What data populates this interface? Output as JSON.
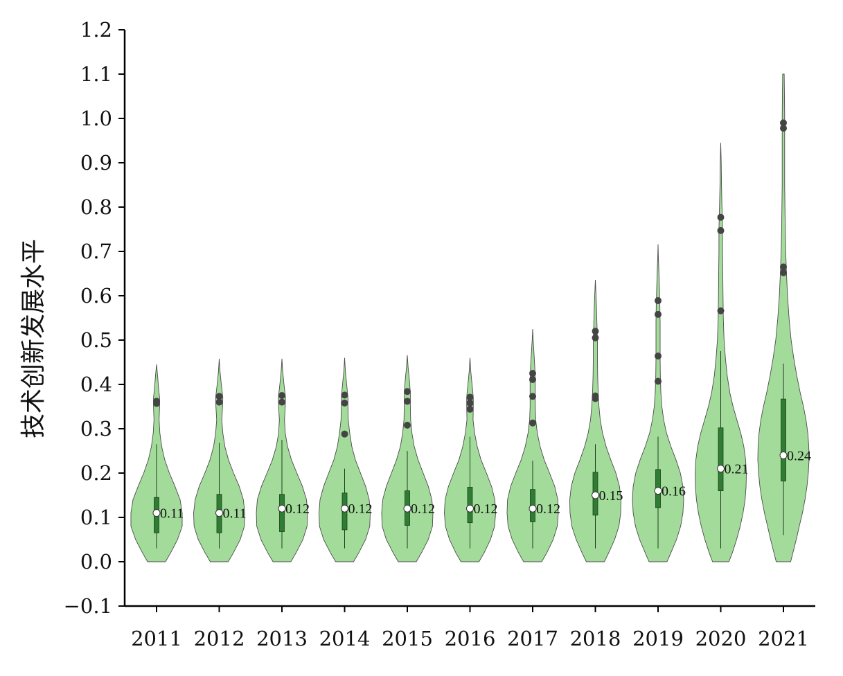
{
  "chart_data": {
    "type": "violin",
    "ylabel": "技术创新发展水平",
    "xlabel": "",
    "ylim": [
      -0.1,
      1.2
    ],
    "yticks": [
      -0.1,
      0.0,
      0.1,
      0.2,
      0.3,
      0.4,
      0.5,
      0.6,
      0.7,
      0.8,
      0.9,
      1.0,
      1.1,
      1.2
    ],
    "ytick_labels": [
      "−0.1",
      "0.0",
      "0.1",
      "0.2",
      "0.3",
      "0.4",
      "0.5",
      "0.6",
      "0.7",
      "0.8",
      "0.9",
      "1.0",
      "1.1",
      "1.2"
    ],
    "categories": [
      "2011",
      "2012",
      "2013",
      "2014",
      "2015",
      "2016",
      "2017",
      "2018",
      "2019",
      "2020",
      "2021"
    ],
    "colors": {
      "violin_fill": "#a3dc9a",
      "violin_edge": "#4a4a4a",
      "box_fill": "#2e7d32",
      "outlier": "#444444",
      "median": "#ffffff"
    },
    "series": [
      {
        "category": "2011",
        "median": 0.11,
        "median_label": "0.11",
        "q1": 0.065,
        "q3": 0.145,
        "whisker_low": 0.03,
        "whisker_high": 0.265,
        "vmin": 0.0,
        "vmax": 0.445,
        "outliers": [
          0.357,
          0.362
        ],
        "density": [
          [
            0.0,
            0.35
          ],
          [
            0.02,
            0.55
          ],
          [
            0.05,
            0.82
          ],
          [
            0.08,
            1.0
          ],
          [
            0.11,
            1.0
          ],
          [
            0.14,
            0.92
          ],
          [
            0.17,
            0.72
          ],
          [
            0.2,
            0.5
          ],
          [
            0.23,
            0.32
          ],
          [
            0.26,
            0.2
          ],
          [
            0.29,
            0.13
          ],
          [
            0.32,
            0.1
          ],
          [
            0.35,
            0.12
          ],
          [
            0.37,
            0.12
          ],
          [
            0.39,
            0.08
          ],
          [
            0.42,
            0.04
          ],
          [
            0.445,
            0.0
          ]
        ]
      },
      {
        "category": "2012",
        "median": 0.11,
        "median_label": "0.11",
        "q1": 0.065,
        "q3": 0.152,
        "whisker_low": 0.03,
        "whisker_high": 0.268,
        "vmin": 0.0,
        "vmax": 0.458,
        "outliers": [
          0.36,
          0.373
        ],
        "density": [
          [
            0.0,
            0.35
          ],
          [
            0.02,
            0.55
          ],
          [
            0.05,
            0.82
          ],
          [
            0.08,
            0.98
          ],
          [
            0.11,
            1.0
          ],
          [
            0.14,
            0.94
          ],
          [
            0.17,
            0.78
          ],
          [
            0.2,
            0.56
          ],
          [
            0.23,
            0.36
          ],
          [
            0.26,
            0.22
          ],
          [
            0.29,
            0.14
          ],
          [
            0.32,
            0.1
          ],
          [
            0.35,
            0.13
          ],
          [
            0.37,
            0.14
          ],
          [
            0.4,
            0.08
          ],
          [
            0.43,
            0.03
          ],
          [
            0.458,
            0.0
          ]
        ]
      },
      {
        "category": "2013",
        "median": 0.12,
        "median_label": "0.12",
        "q1": 0.068,
        "q3": 0.152,
        "whisker_low": 0.03,
        "whisker_high": 0.275,
        "vmin": 0.0,
        "vmax": 0.458,
        "outliers": [
          0.36,
          0.375
        ],
        "density": [
          [
            0.0,
            0.35
          ],
          [
            0.02,
            0.55
          ],
          [
            0.05,
            0.82
          ],
          [
            0.08,
            0.98
          ],
          [
            0.11,
            1.0
          ],
          [
            0.14,
            0.96
          ],
          [
            0.17,
            0.8
          ],
          [
            0.2,
            0.58
          ],
          [
            0.23,
            0.37
          ],
          [
            0.26,
            0.22
          ],
          [
            0.29,
            0.13
          ],
          [
            0.32,
            0.1
          ],
          [
            0.35,
            0.13
          ],
          [
            0.37,
            0.14
          ],
          [
            0.4,
            0.08
          ],
          [
            0.43,
            0.03
          ],
          [
            0.458,
            0.0
          ]
        ]
      },
      {
        "category": "2014",
        "median": 0.12,
        "median_label": "0.12",
        "q1": 0.072,
        "q3": 0.155,
        "whisker_low": 0.03,
        "whisker_high": 0.21,
        "vmin": 0.0,
        "vmax": 0.46,
        "outliers": [
          0.288,
          0.358,
          0.376
        ],
        "density": [
          [
            0.0,
            0.35
          ],
          [
            0.02,
            0.55
          ],
          [
            0.05,
            0.82
          ],
          [
            0.08,
            0.98
          ],
          [
            0.11,
            1.0
          ],
          [
            0.14,
            0.96
          ],
          [
            0.17,
            0.82
          ],
          [
            0.2,
            0.62
          ],
          [
            0.23,
            0.42
          ],
          [
            0.26,
            0.28
          ],
          [
            0.29,
            0.2
          ],
          [
            0.32,
            0.14
          ],
          [
            0.35,
            0.13
          ],
          [
            0.37,
            0.13
          ],
          [
            0.4,
            0.08
          ],
          [
            0.43,
            0.03
          ],
          [
            0.46,
            0.0
          ]
        ]
      },
      {
        "category": "2015",
        "median": 0.12,
        "median_label": "0.12",
        "q1": 0.082,
        "q3": 0.16,
        "whisker_low": 0.03,
        "whisker_high": 0.25,
        "vmin": 0.0,
        "vmax": 0.466,
        "outliers": [
          0.308,
          0.362,
          0.384
        ],
        "density": [
          [
            0.0,
            0.35
          ],
          [
            0.02,
            0.55
          ],
          [
            0.05,
            0.82
          ],
          [
            0.08,
            0.98
          ],
          [
            0.11,
            1.0
          ],
          [
            0.14,
            0.96
          ],
          [
            0.17,
            0.82
          ],
          [
            0.2,
            0.62
          ],
          [
            0.23,
            0.42
          ],
          [
            0.26,
            0.27
          ],
          [
            0.29,
            0.18
          ],
          [
            0.32,
            0.13
          ],
          [
            0.35,
            0.12
          ],
          [
            0.38,
            0.12
          ],
          [
            0.41,
            0.08
          ],
          [
            0.44,
            0.03
          ],
          [
            0.466,
            0.0
          ]
        ]
      },
      {
        "category": "2016",
        "median": 0.12,
        "median_label": "0.12",
        "q1": 0.088,
        "q3": 0.168,
        "whisker_low": 0.03,
        "whisker_high": 0.282,
        "vmin": 0.0,
        "vmax": 0.46,
        "outliers": [
          0.344,
          0.358,
          0.371
        ],
        "density": [
          [
            0.0,
            0.35
          ],
          [
            0.02,
            0.55
          ],
          [
            0.05,
            0.8
          ],
          [
            0.08,
            0.96
          ],
          [
            0.11,
            1.0
          ],
          [
            0.14,
            0.97
          ],
          [
            0.17,
            0.84
          ],
          [
            0.2,
            0.64
          ],
          [
            0.23,
            0.43
          ],
          [
            0.26,
            0.28
          ],
          [
            0.29,
            0.18
          ],
          [
            0.32,
            0.12
          ],
          [
            0.35,
            0.13
          ],
          [
            0.37,
            0.13
          ],
          [
            0.4,
            0.08
          ],
          [
            0.43,
            0.03
          ],
          [
            0.46,
            0.0
          ]
        ]
      },
      {
        "category": "2017",
        "median": 0.12,
        "median_label": "0.12",
        "q1": 0.09,
        "q3": 0.163,
        "whisker_low": 0.03,
        "whisker_high": 0.228,
        "vmin": 0.0,
        "vmax": 0.525,
        "outliers": [
          0.313,
          0.373,
          0.411,
          0.425
        ],
        "density": [
          [
            0.0,
            0.35
          ],
          [
            0.02,
            0.55
          ],
          [
            0.05,
            0.8
          ],
          [
            0.08,
            0.96
          ],
          [
            0.11,
            1.0
          ],
          [
            0.14,
            0.98
          ],
          [
            0.17,
            0.86
          ],
          [
            0.2,
            0.66
          ],
          [
            0.23,
            0.45
          ],
          [
            0.26,
            0.29
          ],
          [
            0.29,
            0.18
          ],
          [
            0.32,
            0.12
          ],
          [
            0.35,
            0.1
          ],
          [
            0.38,
            0.1
          ],
          [
            0.41,
            0.1
          ],
          [
            0.44,
            0.08
          ],
          [
            0.47,
            0.05
          ],
          [
            0.5,
            0.02
          ],
          [
            0.525,
            0.0
          ]
        ]
      },
      {
        "category": "2018",
        "median": 0.15,
        "median_label": "0.15",
        "q1": 0.105,
        "q3": 0.202,
        "whisker_low": 0.03,
        "whisker_high": 0.265,
        "vmin": 0.0,
        "vmax": 0.636,
        "outliers": [
          0.368,
          0.374,
          0.505,
          0.52
        ],
        "density": [
          [
            0.0,
            0.35
          ],
          [
            0.02,
            0.52
          ],
          [
            0.05,
            0.75
          ],
          [
            0.08,
            0.92
          ],
          [
            0.11,
            0.99
          ],
          [
            0.14,
            1.0
          ],
          [
            0.17,
            0.94
          ],
          [
            0.2,
            0.8
          ],
          [
            0.23,
            0.6
          ],
          [
            0.26,
            0.42
          ],
          [
            0.29,
            0.28
          ],
          [
            0.32,
            0.19
          ],
          [
            0.35,
            0.14
          ],
          [
            0.38,
            0.11
          ],
          [
            0.42,
            0.09
          ],
          [
            0.46,
            0.08
          ],
          [
            0.5,
            0.08
          ],
          [
            0.54,
            0.06
          ],
          [
            0.58,
            0.04
          ],
          [
            0.61,
            0.02
          ],
          [
            0.636,
            0.0
          ]
        ]
      },
      {
        "category": "2019",
        "median": 0.16,
        "median_label": "0.16",
        "q1": 0.122,
        "q3": 0.208,
        "whisker_low": 0.03,
        "whisker_high": 0.282,
        "vmin": 0.0,
        "vmax": 0.716,
        "outliers": [
          0.407,
          0.464,
          0.558,
          0.589
        ],
        "density": [
          [
            0.0,
            0.35
          ],
          [
            0.02,
            0.5
          ],
          [
            0.05,
            0.72
          ],
          [
            0.08,
            0.88
          ],
          [
            0.11,
            0.97
          ],
          [
            0.14,
            1.0
          ],
          [
            0.17,
            0.97
          ],
          [
            0.2,
            0.87
          ],
          [
            0.23,
            0.7
          ],
          [
            0.26,
            0.5
          ],
          [
            0.29,
            0.33
          ],
          [
            0.32,
            0.22
          ],
          [
            0.35,
            0.15
          ],
          [
            0.38,
            0.11
          ],
          [
            0.42,
            0.09
          ],
          [
            0.46,
            0.08
          ],
          [
            0.5,
            0.08
          ],
          [
            0.54,
            0.08
          ],
          [
            0.58,
            0.07
          ],
          [
            0.62,
            0.05
          ],
          [
            0.66,
            0.03
          ],
          [
            0.69,
            0.01
          ],
          [
            0.716,
            0.0
          ]
        ]
      },
      {
        "category": "2020",
        "median": 0.21,
        "median_label": "0.21",
        "q1": 0.16,
        "q3": 0.302,
        "whisker_low": 0.03,
        "whisker_high": 0.475,
        "vmin": 0.0,
        "vmax": 0.945,
        "outliers": [
          0.566,
          0.747,
          0.777
        ],
        "density": [
          [
            0.0,
            0.32
          ],
          [
            0.02,
            0.45
          ],
          [
            0.05,
            0.62
          ],
          [
            0.08,
            0.76
          ],
          [
            0.11,
            0.87
          ],
          [
            0.14,
            0.95
          ],
          [
            0.17,
            0.99
          ],
          [
            0.2,
            1.0
          ],
          [
            0.23,
            0.97
          ],
          [
            0.26,
            0.9
          ],
          [
            0.29,
            0.78
          ],
          [
            0.32,
            0.63
          ],
          [
            0.35,
            0.48
          ],
          [
            0.38,
            0.36
          ],
          [
            0.42,
            0.25
          ],
          [
            0.46,
            0.18
          ],
          [
            0.5,
            0.13
          ],
          [
            0.55,
            0.1
          ],
          [
            0.6,
            0.09
          ],
          [
            0.65,
            0.08
          ],
          [
            0.7,
            0.07
          ],
          [
            0.75,
            0.07
          ],
          [
            0.8,
            0.05
          ],
          [
            0.85,
            0.03
          ],
          [
            0.9,
            0.02
          ],
          [
            0.945,
            0.0
          ]
        ]
      },
      {
        "category": "2021",
        "median": 0.24,
        "median_label": "0.24",
        "q1": 0.182,
        "q3": 0.367,
        "whisker_low": 0.06,
        "whisker_high": 0.447,
        "vmin": 0.0,
        "vmax": 1.1,
        "outliers": [
          0.652,
          0.665,
          0.978,
          0.99
        ],
        "density": [
          [
            0.0,
            0.28
          ],
          [
            0.02,
            0.37
          ],
          [
            0.05,
            0.5
          ],
          [
            0.08,
            0.62
          ],
          [
            0.11,
            0.74
          ],
          [
            0.14,
            0.84
          ],
          [
            0.17,
            0.92
          ],
          [
            0.2,
            0.97
          ],
          [
            0.23,
            1.0
          ],
          [
            0.26,
            0.99
          ],
          [
            0.29,
            0.95
          ],
          [
            0.32,
            0.88
          ],
          [
            0.35,
            0.78
          ],
          [
            0.38,
            0.66
          ],
          [
            0.42,
            0.52
          ],
          [
            0.46,
            0.4
          ],
          [
            0.5,
            0.3
          ],
          [
            0.55,
            0.22
          ],
          [
            0.6,
            0.16
          ],
          [
            0.65,
            0.12
          ],
          [
            0.7,
            0.09
          ],
          [
            0.75,
            0.07
          ],
          [
            0.8,
            0.06
          ],
          [
            0.85,
            0.05
          ],
          [
            0.9,
            0.05
          ],
          [
            0.95,
            0.05
          ],
          [
            1.0,
            0.05
          ],
          [
            1.05,
            0.04
          ],
          [
            1.1,
            0.03
          ]
        ]
      }
    ]
  }
}
